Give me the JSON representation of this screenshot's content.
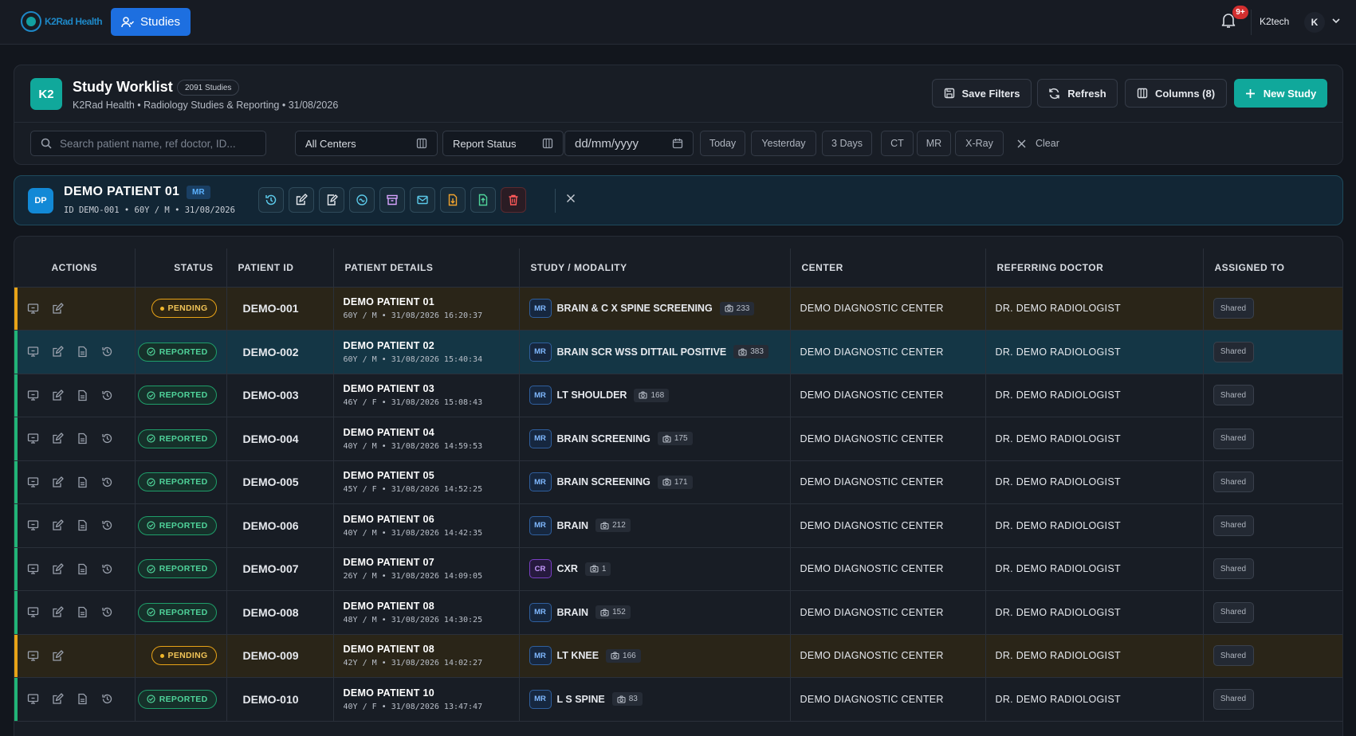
{
  "app": {
    "logo_text": "K2Rad Health",
    "nav_button": "Studies",
    "notifications_badge": "9+",
    "username": "K2tech",
    "avatar_initial": "K"
  },
  "header": {
    "badge": "K2",
    "title": "Study Worklist",
    "count": "2091 Studies",
    "subtitle": "K2Rad Health • Radiology Studies & Reporting • 31/08/2026",
    "save_filters": "Save Filters",
    "refresh": "Refresh",
    "columns": "Columns (8)",
    "new_study": "New Study"
  },
  "filters": {
    "search_placeholder": "Search patient name, ref doctor, ID...",
    "center": "All Centers",
    "report_status": "Report Status",
    "date_placeholder": "dd/mm/yyyy",
    "quick": [
      "Today",
      "Yesterday",
      "3 Days",
      "CT",
      "MR",
      "X-Ray"
    ],
    "clear": "Clear"
  },
  "selected_patient": {
    "initials": "DP",
    "name": "DEMO PATIENT 01",
    "modality": "MR",
    "meta": "ID DEMO-001 • 60Y / M • 31/08/2026",
    "action_icons": [
      "history-icon",
      "edit-report-icon",
      "sign-report-icon",
      "share-icon",
      "archive-icon",
      "email-icon",
      "download-report-icon",
      "export-icon",
      "delete-icon"
    ]
  },
  "table": {
    "headers": [
      "ACTIONS",
      "STATUS",
      "PATIENT ID",
      "PATIENT DETAILS",
      "STUDY / MODALITY",
      "CENTER",
      "REFERRING DOCTOR",
      "ASSIGNED TO"
    ],
    "rows": [
      {
        "status": "PENDING",
        "pid": "DEMO-001",
        "name": "DEMO PATIENT 01",
        "meta": "60Y / M • 31/08/2026 16:20:37",
        "modality": "MR",
        "study": "BRAIN & C X SPINE SCREENING",
        "images": "233",
        "center": "DEMO DIAGNOSTIC CENTER",
        "doctor": "DR. DEMO RADIOLOGIST",
        "assigned": "Shared"
      },
      {
        "status": "REPORTED",
        "pid": "DEMO-002",
        "name": "DEMO PATIENT 02",
        "meta": "60Y / M • 31/08/2026 15:40:34",
        "modality": "MR",
        "study": "BRAIN SCR WSS DITTAIL POSITIVE",
        "images": "383",
        "center": "DEMO DIAGNOSTIC CENTER",
        "doctor": "DR. DEMO RADIOLOGIST",
        "assigned": "Shared"
      },
      {
        "status": "REPORTED",
        "pid": "DEMO-003",
        "name": "DEMO PATIENT 03",
        "meta": "46Y / F • 31/08/2026 15:08:43",
        "modality": "MR",
        "study": "LT SHOULDER",
        "images": "168",
        "center": "DEMO DIAGNOSTIC CENTER",
        "doctor": "DR. DEMO RADIOLOGIST",
        "assigned": "Shared"
      },
      {
        "status": "REPORTED",
        "pid": "DEMO-004",
        "name": "DEMO PATIENT 04",
        "meta": "40Y / M • 31/08/2026 14:59:53",
        "modality": "MR",
        "study": "BRAIN SCREENING",
        "images": "175",
        "center": "DEMO DIAGNOSTIC CENTER",
        "doctor": "DR. DEMO RADIOLOGIST",
        "assigned": "Shared"
      },
      {
        "status": "REPORTED",
        "pid": "DEMO-005",
        "name": "DEMO PATIENT 05",
        "meta": "45Y / F • 31/08/2026 14:52:25",
        "modality": "MR",
        "study": "BRAIN SCREENING",
        "images": "171",
        "center": "DEMO DIAGNOSTIC CENTER",
        "doctor": "DR. DEMO RADIOLOGIST",
        "assigned": "Shared"
      },
      {
        "status": "REPORTED",
        "pid": "DEMO-006",
        "name": "DEMO PATIENT 06",
        "meta": "40Y / M • 31/08/2026 14:42:35",
        "modality": "MR",
        "study": "BRAIN",
        "images": "212",
        "center": "DEMO DIAGNOSTIC CENTER",
        "doctor": "DR. DEMO RADIOLOGIST",
        "assigned": "Shared"
      },
      {
        "status": "REPORTED",
        "pid": "DEMO-007",
        "name": "DEMO PATIENT 07",
        "meta": "26Y / M • 31/08/2026 14:09:05",
        "modality": "CR",
        "study": "CXR",
        "images": "1",
        "center": "DEMO DIAGNOSTIC CENTER",
        "doctor": "DR. DEMO RADIOLOGIST",
        "assigned": "Shared"
      },
      {
        "status": "REPORTED",
        "pid": "DEMO-008",
        "name": "DEMO PATIENT 08",
        "meta": "48Y / M • 31/08/2026 14:30:25",
        "modality": "MR",
        "study": "BRAIN",
        "images": "152",
        "center": "DEMO DIAGNOSTIC CENTER",
        "doctor": "DR. DEMO RADIOLOGIST",
        "assigned": "Shared"
      },
      {
        "status": "PENDING",
        "pid": "DEMO-009",
        "name": "DEMO PATIENT 08",
        "meta": "42Y / M • 31/08/2026 14:02:27",
        "modality": "MR",
        "study": "LT KNEE",
        "images": "166",
        "center": "DEMO DIAGNOSTIC CENTER",
        "doctor": "DR. DEMO RADIOLOGIST",
        "assigned": "Shared"
      },
      {
        "status": "REPORTED",
        "pid": "DEMO-010",
        "name": "DEMO PATIENT 10",
        "meta": "40Y / F • 31/08/2026 13:47:47",
        "modality": "MR",
        "study": "L S SPINE",
        "images": "83",
        "center": "DEMO DIAGNOSTIC CENTER",
        "doctor": "DR. DEMO RADIOLOGIST",
        "assigned": "Shared"
      }
    ]
  },
  "colors": {
    "background": "#12161d",
    "accent_teal": "#10a89b",
    "nav_blue": "#1d6fe0",
    "pending": "#e8a317",
    "reported": "#21b477",
    "selected_row": "#143645"
  }
}
